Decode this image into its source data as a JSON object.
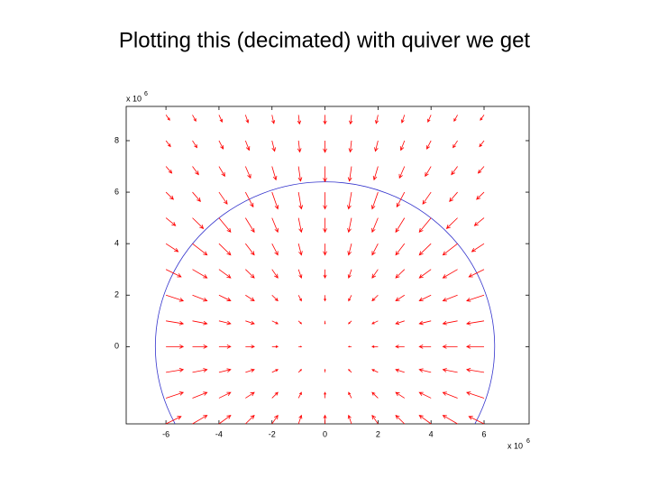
{
  "chart_data": {
    "type": "quiver",
    "title": "Plotting this (decimated) with quiver we get",
    "x": [
      -6,
      -5,
      -4,
      -3,
      -2,
      -1,
      0,
      1,
      2,
      3,
      4,
      5,
      6
    ],
    "y": [
      -3,
      -2,
      -1,
      0,
      1,
      2,
      3,
      4,
      5,
      6,
      7,
      8,
      9
    ],
    "u": [
      [
        0.57,
        0.55,
        0.44,
        0.33,
        0.22,
        0.11,
        0,
        -0.11,
        -0.22,
        -0.33,
        -0.44,
        -0.55,
        -0.57
      ],
      [
        0.65,
        0.55,
        0.44,
        0.33,
        0.22,
        0.11,
        0,
        -0.11,
        -0.22,
        -0.33,
        -0.44,
        -0.55,
        -0.65
      ],
      [
        0.65,
        0.55,
        0.44,
        0.33,
        0.22,
        0.11,
        0,
        -0.11,
        -0.22,
        -0.33,
        -0.44,
        -0.55,
        -0.65
      ],
      [
        0.65,
        0.55,
        0.44,
        0.33,
        0.22,
        0.11,
        0,
        -0.11,
        -0.22,
        -0.33,
        -0.44,
        -0.55,
        -0.65
      ],
      [
        0.65,
        0.55,
        0.44,
        0.33,
        0.22,
        0.11,
        0,
        -0.11,
        -0.22,
        -0.33,
        -0.44,
        -0.55,
        -0.65
      ],
      [
        0.65,
        0.55,
        0.44,
        0.33,
        0.22,
        0.11,
        0,
        -0.11,
        -0.22,
        -0.33,
        -0.44,
        -0.55,
        -0.65
      ],
      [
        0.57,
        0.55,
        0.44,
        0.33,
        0.22,
        0.11,
        0,
        -0.11,
        -0.22,
        -0.33,
        -0.44,
        -0.55,
        -0.57
      ],
      [
        0.46,
        0.55,
        0.44,
        0.33,
        0.22,
        0.11,
        0,
        -0.11,
        -0.22,
        -0.33,
        -0.44,
        -0.55,
        -0.46
      ],
      [
        0.36,
        0.41,
        0.44,
        0.33,
        0.22,
        0.11,
        0,
        -0.11,
        -0.22,
        -0.33,
        -0.44,
        -0.41,
        -0.36
      ],
      [
        0.28,
        0.3,
        0.31,
        0.29,
        0.22,
        0.11,
        0,
        -0.11,
        -0.22,
        -0.29,
        -0.31,
        -0.3,
        -0.28
      ],
      [
        0.22,
        0.23,
        0.22,
        0.19,
        0.15,
        0.08,
        0,
        -0.08,
        -0.15,
        -0.19,
        -0.22,
        -0.23,
        -0.22
      ],
      [
        0.17,
        0.17,
        0.16,
        0.14,
        0.1,
        0.05,
        0,
        -0.05,
        -0.1,
        -0.14,
        -0.16,
        -0.17,
        -0.17
      ],
      [
        0.14,
        0.13,
        0.12,
        0.1,
        0.07,
        0.04,
        0,
        -0.04,
        -0.07,
        -0.1,
        -0.12,
        -0.13,
        -0.14
      ]
    ],
    "v": [
      [
        0.29,
        0.33,
        0.33,
        0.33,
        0.33,
        0.33,
        0.33,
        0.33,
        0.33,
        0.33,
        0.33,
        0.33,
        0.29
      ],
      [
        0.22,
        0.22,
        0.22,
        0.22,
        0.22,
        0.22,
        0.22,
        0.22,
        0.22,
        0.22,
        0.22,
        0.22,
        0.22
      ],
      [
        0.11,
        0.11,
        0.11,
        0.11,
        0.11,
        0.11,
        0.11,
        0.11,
        0.11,
        0.11,
        0.11,
        0.11,
        0.11
      ],
      [
        0,
        0,
        0,
        0,
        0,
        0,
        0,
        0,
        0,
        0,
        0,
        0,
        0
      ],
      [
        -0.11,
        -0.11,
        -0.11,
        -0.11,
        -0.11,
        -0.11,
        -0.11,
        -0.11,
        -0.11,
        -0.11,
        -0.11,
        -0.11,
        -0.11
      ],
      [
        -0.22,
        -0.22,
        -0.22,
        -0.22,
        -0.22,
        -0.22,
        -0.22,
        -0.22,
        -0.22,
        -0.22,
        -0.22,
        -0.22,
        -0.22
      ],
      [
        -0.29,
        -0.33,
        -0.33,
        -0.33,
        -0.33,
        -0.33,
        -0.33,
        -0.33,
        -0.33,
        -0.33,
        -0.33,
        -0.33,
        -0.29
      ],
      [
        -0.31,
        -0.44,
        -0.44,
        -0.44,
        -0.44,
        -0.44,
        -0.44,
        -0.44,
        -0.44,
        -0.44,
        -0.44,
        -0.44,
        -0.31
      ],
      [
        -0.3,
        -0.41,
        -0.55,
        -0.55,
        -0.55,
        -0.55,
        -0.55,
        -0.55,
        -0.55,
        -0.55,
        -0.55,
        -0.41,
        -0.3
      ],
      [
        -0.28,
        -0.36,
        -0.46,
        -0.57,
        -0.65,
        -0.65,
        -0.65,
        -0.65,
        -0.65,
        -0.57,
        -0.46,
        -0.36,
        -0.28
      ],
      [
        -0.26,
        -0.32,
        -0.38,
        -0.45,
        -0.52,
        -0.57,
        -0.59,
        -0.57,
        -0.52,
        -0.45,
        -0.38,
        -0.32,
        -0.26
      ],
      [
        -0.23,
        -0.27,
        -0.32,
        -0.37,
        -0.41,
        -0.44,
        -0.45,
        -0.44,
        -0.41,
        -0.37,
        -0.32,
        -0.27,
        -0.23
      ],
      [
        -0.2,
        -0.24,
        -0.27,
        -0.3,
        -0.33,
        -0.35,
        -0.35,
        -0.35,
        -0.33,
        -0.3,
        -0.27,
        -0.24,
        -0.2
      ]
    ],
    "color": "#ff0000",
    "circle": {
      "radius": 6.4,
      "color": "#3333cc"
    },
    "xlim": [
      -7.5,
      7.7
    ],
    "ylim": [
      -3,
      9.33
    ],
    "xticks": [
      -6,
      -4,
      -2,
      0,
      2,
      4,
      6
    ],
    "yticks": [
      0,
      2,
      4,
      6,
      8
    ],
    "y_scale_label": {
      "base": "x 10",
      "exponent": "6"
    },
    "x_scale_label": {
      "base": "x 10",
      "exponent": "6"
    }
  }
}
